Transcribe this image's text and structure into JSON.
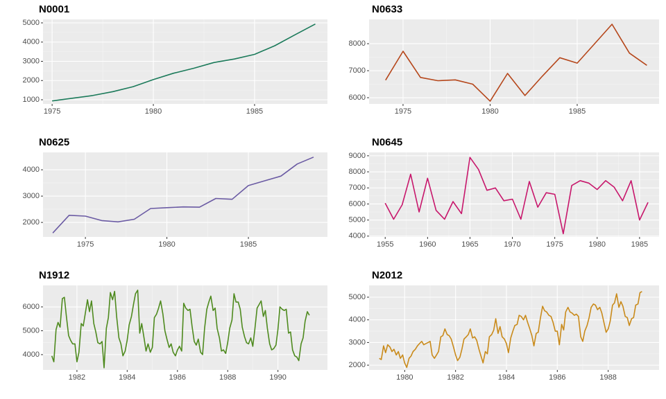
{
  "chart_data": [
    {
      "type": "line",
      "title": "N0001",
      "color": "#1b7a5a",
      "grid": true,
      "x": [
        1975,
        1976,
        1977,
        1978,
        1979,
        1980,
        1981,
        1982,
        1983,
        1984,
        1985,
        1986,
        1987,
        1988
      ],
      "values": [
        940,
        1080,
        1220,
        1420,
        1680,
        2050,
        2380,
        2640,
        2940,
        3120,
        3360,
        3810,
        4380,
        4940
      ],
      "xlim": [
        1974.55,
        1988.6
      ],
      "ylim": [
        784,
        5180
      ],
      "xticks": [
        1975,
        1980,
        1985
      ],
      "yticks": [
        1000,
        2000,
        3000,
        4000,
        5000
      ]
    },
    {
      "type": "line",
      "title": "N0633",
      "color": "#b5461a",
      "grid": true,
      "x": [
        1974,
        1975,
        1976,
        1977,
        1978,
        1979,
        1980,
        1981,
        1982,
        1983,
        1984,
        1985,
        1986,
        1987,
        1988,
        1989
      ],
      "values": [
        6650,
        7720,
        6750,
        6630,
        6660,
        6500,
        5870,
        6900,
        6080,
        6800,
        7480,
        7280,
        8000,
        8720,
        7650,
        7200
      ],
      "xlim": [
        1973.05,
        1989.7
      ],
      "ylim": [
        5770,
        8900
      ],
      "xticks": [
        1975,
        1980,
        1985
      ],
      "yticks": [
        6000,
        7000,
        8000
      ]
    },
    {
      "type": "line",
      "title": "N0625",
      "color": "#6a5aa3",
      "grid": true,
      "x": [
        1973,
        1974,
        1975,
        1976,
        1977,
        1978,
        1979,
        1980,
        1981,
        1982,
        1983,
        1984,
        1985,
        1986,
        1987,
        1988,
        1989
      ],
      "values": [
        1600,
        2270,
        2240,
        2070,
        2020,
        2120,
        2530,
        2560,
        2590,
        2580,
        2910,
        2880,
        3400,
        3580,
        3760,
        4220,
        4480
      ],
      "xlim": [
        1972.4,
        1989.85
      ],
      "ylim": [
        1450,
        4660
      ],
      "xticks": [
        1975,
        1980,
        1985
      ],
      "yticks": [
        2000,
        3000,
        4000
      ]
    },
    {
      "type": "line",
      "title": "N0645",
      "color": "#c7166b",
      "grid": true,
      "x": [
        1955,
        1956,
        1957,
        1958,
        1959,
        1960,
        1961,
        1962,
        1963,
        1964,
        1965,
        1966,
        1967,
        1968,
        1969,
        1970,
        1971,
        1972,
        1973,
        1974,
        1975,
        1976,
        1977,
        1978,
        1979,
        1980,
        1981,
        1982,
        1983,
        1984,
        1985,
        1986
      ],
      "values": [
        6050,
        5050,
        5950,
        7850,
        5500,
        7600,
        5600,
        5050,
        6150,
        5400,
        8900,
        8150,
        6850,
        7000,
        6200,
        6300,
        5050,
        7400,
        5800,
        6700,
        6600,
        4150,
        7150,
        7450,
        7300,
        6900,
        7450,
        7050,
        6200,
        7450,
        5000,
        6100
      ],
      "xlim": [
        1953.1,
        1987.3
      ],
      "ylim": [
        3950,
        9210
      ],
      "xticks": [
        1955,
        1960,
        1965,
        1970,
        1975,
        1980,
        1985
      ],
      "yticks": [
        4000,
        5000,
        6000,
        7000,
        8000,
        9000
      ]
    },
    {
      "type": "line",
      "title": "N1912",
      "color": "#4e8a1e",
      "grid": true,
      "x": [
        1981,
        1981.08,
        1981.17,
        1981.25,
        1981.33,
        1981.42,
        1981.5,
        1981.58,
        1981.67,
        1981.75,
        1981.83,
        1981.92,
        1982,
        1982.08,
        1982.17,
        1982.25,
        1982.33,
        1982.42,
        1982.5,
        1982.58,
        1982.67,
        1982.75,
        1982.83,
        1982.92,
        1983,
        1983.08,
        1983.17,
        1983.25,
        1983.33,
        1983.42,
        1983.5,
        1983.58,
        1983.67,
        1983.75,
        1983.83,
        1983.92,
        1984,
        1984.08,
        1984.17,
        1984.25,
        1984.33,
        1984.42,
        1984.5,
        1984.58,
        1984.67,
        1984.75,
        1984.83,
        1984.92,
        1985,
        1985.08,
        1985.17,
        1985.25,
        1985.33,
        1985.42,
        1985.5,
        1985.58,
        1985.67,
        1985.75,
        1985.83,
        1985.92,
        1986,
        1986.08,
        1986.17,
        1986.25,
        1986.33,
        1986.42,
        1986.5,
        1986.58,
        1986.67,
        1986.75,
        1986.83,
        1986.92,
        1987,
        1987.08,
        1987.17,
        1987.25,
        1987.33,
        1987.42,
        1987.5,
        1987.58,
        1987.67,
        1987.75,
        1987.83,
        1987.92,
        1988,
        1988.08,
        1988.17,
        1988.25,
        1988.33,
        1988.42,
        1988.5,
        1988.58,
        1988.67,
        1988.75,
        1988.83,
        1988.92,
        1989,
        1989.08,
        1989.17,
        1989.25,
        1989.33,
        1989.42,
        1989.5,
        1989.58,
        1989.67,
        1989.75,
        1989.83,
        1989.92,
        1990,
        1990.08,
        1990.17,
        1990.25,
        1990.33,
        1990.42,
        1990.5,
        1990.58,
        1990.67,
        1990.75,
        1990.83,
        1990.92,
        1991,
        1991.08,
        1991.17,
        1991.25
      ],
      "values": [
        3950,
        3700,
        5050,
        5350,
        5150,
        6350,
        6400,
        5600,
        4800,
        4600,
        4450,
        4450,
        3700,
        4100,
        5300,
        5200,
        5700,
        6300,
        5800,
        6250,
        5300,
        4950,
        4500,
        4450,
        4550,
        3450,
        5100,
        5550,
        6600,
        6300,
        6650,
        5600,
        4700,
        4450,
        3950,
        4150,
        4600,
        5250,
        5600,
        6100,
        6550,
        6700,
        4900,
        5300,
        4700,
        4150,
        4450,
        4100,
        4300,
        5550,
        5700,
        5950,
        6250,
        5700,
        5000,
        4650,
        4300,
        4450,
        4100,
        3950,
        4200,
        4350,
        4150,
        6150,
        5950,
        5850,
        5900,
        5200,
        4550,
        4400,
        4650,
        4100,
        4000,
        5100,
        5900,
        6200,
        6450,
        5850,
        5950,
        5100,
        4700,
        4150,
        4200,
        4050,
        4500,
        5100,
        5450,
        6550,
        6200,
        6200,
        5900,
        5150,
        4750,
        4500,
        4450,
        4700,
        4350,
        5050,
        5950,
        6100,
        6250,
        5600,
        5850,
        5100,
        4450,
        4200,
        4250,
        4400,
        5050,
        6000,
        5900,
        5850,
        5900,
        4900,
        4950,
        4200,
        3950,
        3900,
        3750,
        4450,
        4700,
        5400,
        5800,
        5650
      ],
      "xlim": [
        1980.65,
        1991.97
      ],
      "ylim": [
        3360,
        6900
      ],
      "xticks": [
        1982,
        1984,
        1986,
        1988,
        1990
      ],
      "yticks": [
        4000,
        5000,
        6000
      ]
    },
    {
      "type": "line",
      "title": "N2012",
      "color": "#c98a1a",
      "grid": true,
      "x": [
        1979,
        1979.08,
        1979.17,
        1979.25,
        1979.33,
        1979.42,
        1979.5,
        1979.58,
        1979.67,
        1979.75,
        1979.83,
        1979.92,
        1980,
        1980.08,
        1980.17,
        1980.25,
        1980.33,
        1980.42,
        1980.5,
        1980.58,
        1980.67,
        1980.75,
        1980.83,
        1980.92,
        1981,
        1981.08,
        1981.17,
        1981.25,
        1981.33,
        1981.42,
        1981.5,
        1981.58,
        1981.67,
        1981.75,
        1981.83,
        1981.92,
        1982,
        1982.08,
        1982.17,
        1982.25,
        1982.33,
        1982.42,
        1982.5,
        1982.58,
        1982.67,
        1982.75,
        1982.83,
        1982.92,
        1983,
        1983.08,
        1983.17,
        1983.25,
        1983.33,
        1983.42,
        1983.5,
        1983.58,
        1983.67,
        1983.75,
        1983.83,
        1983.92,
        1984,
        1984.08,
        1984.17,
        1984.25,
        1984.33,
        1984.42,
        1984.5,
        1984.58,
        1984.67,
        1984.75,
        1984.83,
        1984.92,
        1985,
        1985.08,
        1985.17,
        1985.25,
        1985.33,
        1985.42,
        1985.5,
        1985.58,
        1985.67,
        1985.75,
        1985.83,
        1985.92,
        1986,
        1986.08,
        1986.17,
        1986.25,
        1986.33,
        1986.42,
        1986.5,
        1986.58,
        1986.67,
        1986.75,
        1986.83,
        1986.92,
        1987,
        1987.08,
        1987.17,
        1987.25,
        1987.33,
        1987.42,
        1987.5,
        1987.58,
        1987.67,
        1987.75,
        1987.83,
        1987.92,
        1988,
        1988.08,
        1988.17,
        1988.25,
        1988.33,
        1988.42,
        1988.5,
        1988.58,
        1988.67,
        1988.75,
        1988.83,
        1988.92,
        1989,
        1989.08,
        1989.17,
        1989.25,
        1989.33
      ],
      "values": [
        2300,
        2250,
        2850,
        2550,
        2900,
        2800,
        2600,
        2700,
        2450,
        2600,
        2300,
        2450,
        2100,
        1900,
        2300,
        2400,
        2600,
        2700,
        2850,
        2950,
        3050,
        2900,
        2950,
        3000,
        3050,
        2450,
        2300,
        2450,
        2600,
        3250,
        3300,
        3600,
        3350,
        3300,
        3150,
        2800,
        2450,
        2200,
        2350,
        2700,
        3150,
        3250,
        3350,
        3600,
        3200,
        3250,
        3100,
        2700,
        2400,
        2100,
        2600,
        2500,
        3250,
        3350,
        3550,
        4050,
        3400,
        3700,
        3250,
        3150,
        2950,
        2550,
        3200,
        3500,
        3750,
        3800,
        4200,
        4150,
        4000,
        4200,
        3900,
        3600,
        3300,
        2850,
        3400,
        3450,
        4050,
        4600,
        4400,
        4350,
        4200,
        4150,
        3900,
        3500,
        3500,
        2900,
        3800,
        3550,
        4350,
        4550,
        4350,
        4300,
        4200,
        4250,
        4150,
        3250,
        3050,
        3500,
        3750,
        4100,
        4550,
        4700,
        4650,
        4450,
        4550,
        4300,
        3900,
        3450,
        3600,
        3950,
        4650,
        4750,
        5150,
        4550,
        4800,
        4600,
        4150,
        4100,
        3750,
        4050,
        4100,
        4650,
        4700,
        5200,
        5250
      ],
      "xlim": [
        1978.6,
        1990.0
      ],
      "ylim": [
        1790,
        5520
      ],
      "xticks": [
        1980,
        1982,
        1984,
        1986,
        1988
      ],
      "yticks": [
        2000,
        3000,
        4000,
        5000
      ]
    }
  ]
}
